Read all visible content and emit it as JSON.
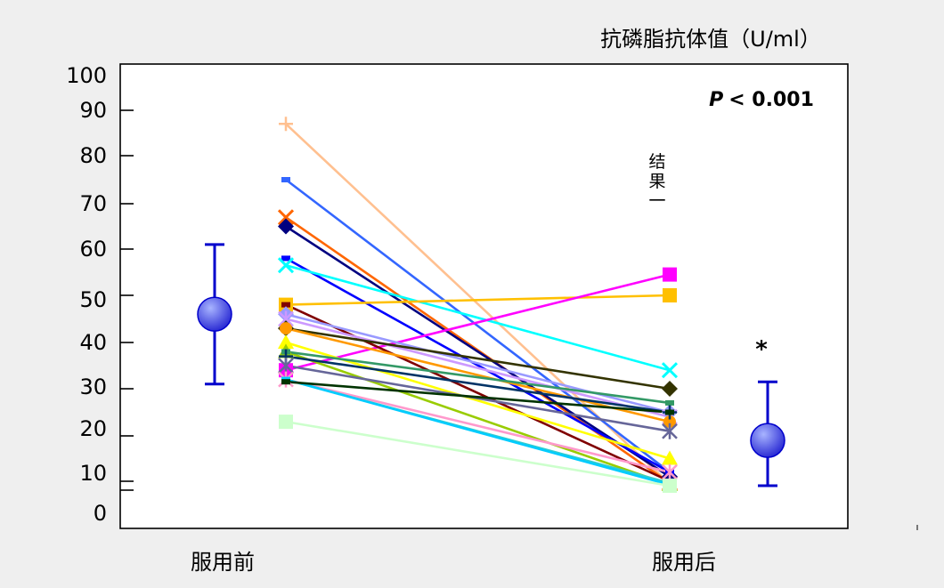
{
  "chart_data": {
    "type": "line",
    "title": "抗磷脂抗体值（U/ml）",
    "annotation": "P < 0.001",
    "annotation_italic_part": "P",
    "annotation_rest": "< 0.001",
    "side_note": "结果一",
    "categories": [
      "服用前",
      "服用后"
    ],
    "ylim": [
      0,
      100
    ],
    "yticks": [
      0,
      10,
      20,
      30,
      40,
      50,
      60,
      70,
      80,
      90,
      100
    ],
    "ytick_labels": [
      "0",
      "10",
      "20",
      "30",
      "40",
      "50",
      "60",
      "70",
      "80",
      "90",
      "100"
    ],
    "grid": false,
    "legend": "none",
    "summary": [
      {
        "mean": 46,
        "low": 31,
        "high": 61
      },
      {
        "mean": 19,
        "low": 5,
        "high": 31.5,
        "significance": "*"
      }
    ],
    "series": [
      {
        "values": [
          87,
          7
        ],
        "color": "#FFC090",
        "marker": "plus"
      },
      {
        "values": [
          75,
          12
        ],
        "color": "#3366FF",
        "marker": "dash"
      },
      {
        "values": [
          67,
          8
        ],
        "color": "#FF6600",
        "marker": "x"
      },
      {
        "values": [
          65,
          11
        ],
        "color": "#000080",
        "marker": "diamond"
      },
      {
        "values": [
          58,
          12
        ],
        "color": "#0000FF",
        "marker": "dash"
      },
      {
        "values": [
          56.5,
          34
        ],
        "color": "#00FFFF",
        "marker": "x"
      },
      {
        "values": [
          48,
          50
        ],
        "color": "#FFC000",
        "marker": "square"
      },
      {
        "values": [
          34,
          54.5
        ],
        "color": "#FF00FF",
        "marker": "square"
      },
      {
        "values": [
          48,
          10
        ],
        "color": "#800000",
        "marker": "dash"
      },
      {
        "values": [
          46,
          25
        ],
        "color": "#9999FF",
        "marker": "diamond"
      },
      {
        "values": [
          45,
          24
        ],
        "color": "#CC99FF",
        "marker": "star"
      },
      {
        "values": [
          43,
          30
        ],
        "color": "#333300",
        "marker": "diamond"
      },
      {
        "values": [
          43,
          23
        ],
        "color": "#FF9900",
        "marker": "circle"
      },
      {
        "values": [
          40,
          15
        ],
        "color": "#FFFF00",
        "marker": "triangle"
      },
      {
        "values": [
          38,
          6
        ],
        "color": "#99CC00",
        "marker": "triangle"
      },
      {
        "values": [
          38,
          27
        ],
        "color": "#339966",
        "marker": "dash"
      },
      {
        "values": [
          37,
          25
        ],
        "color": "#003366",
        "marker": "plus"
      },
      {
        "values": [
          35,
          21
        ],
        "color": "#666699",
        "marker": "star"
      },
      {
        "values": [
          32,
          12
        ],
        "color": "#FF99CC",
        "marker": "star"
      },
      {
        "values": [
          32,
          8
        ],
        "color": "#33CCCC",
        "marker": "dash"
      },
      {
        "values": [
          32,
          6
        ],
        "color": "#00CCFF",
        "marker": "dash"
      },
      {
        "values": [
          31.5,
          25
        ],
        "color": "#003300",
        "marker": "dash"
      },
      {
        "values": [
          23,
          5
        ],
        "color": "#CCFFCC",
        "marker": "square"
      }
    ],
    "colors": {
      "axis": "#000000",
      "summary": "#0000CC",
      "summary_fill_light": "#A8B4FF",
      "summary_fill_dark": "#2020D0"
    }
  }
}
